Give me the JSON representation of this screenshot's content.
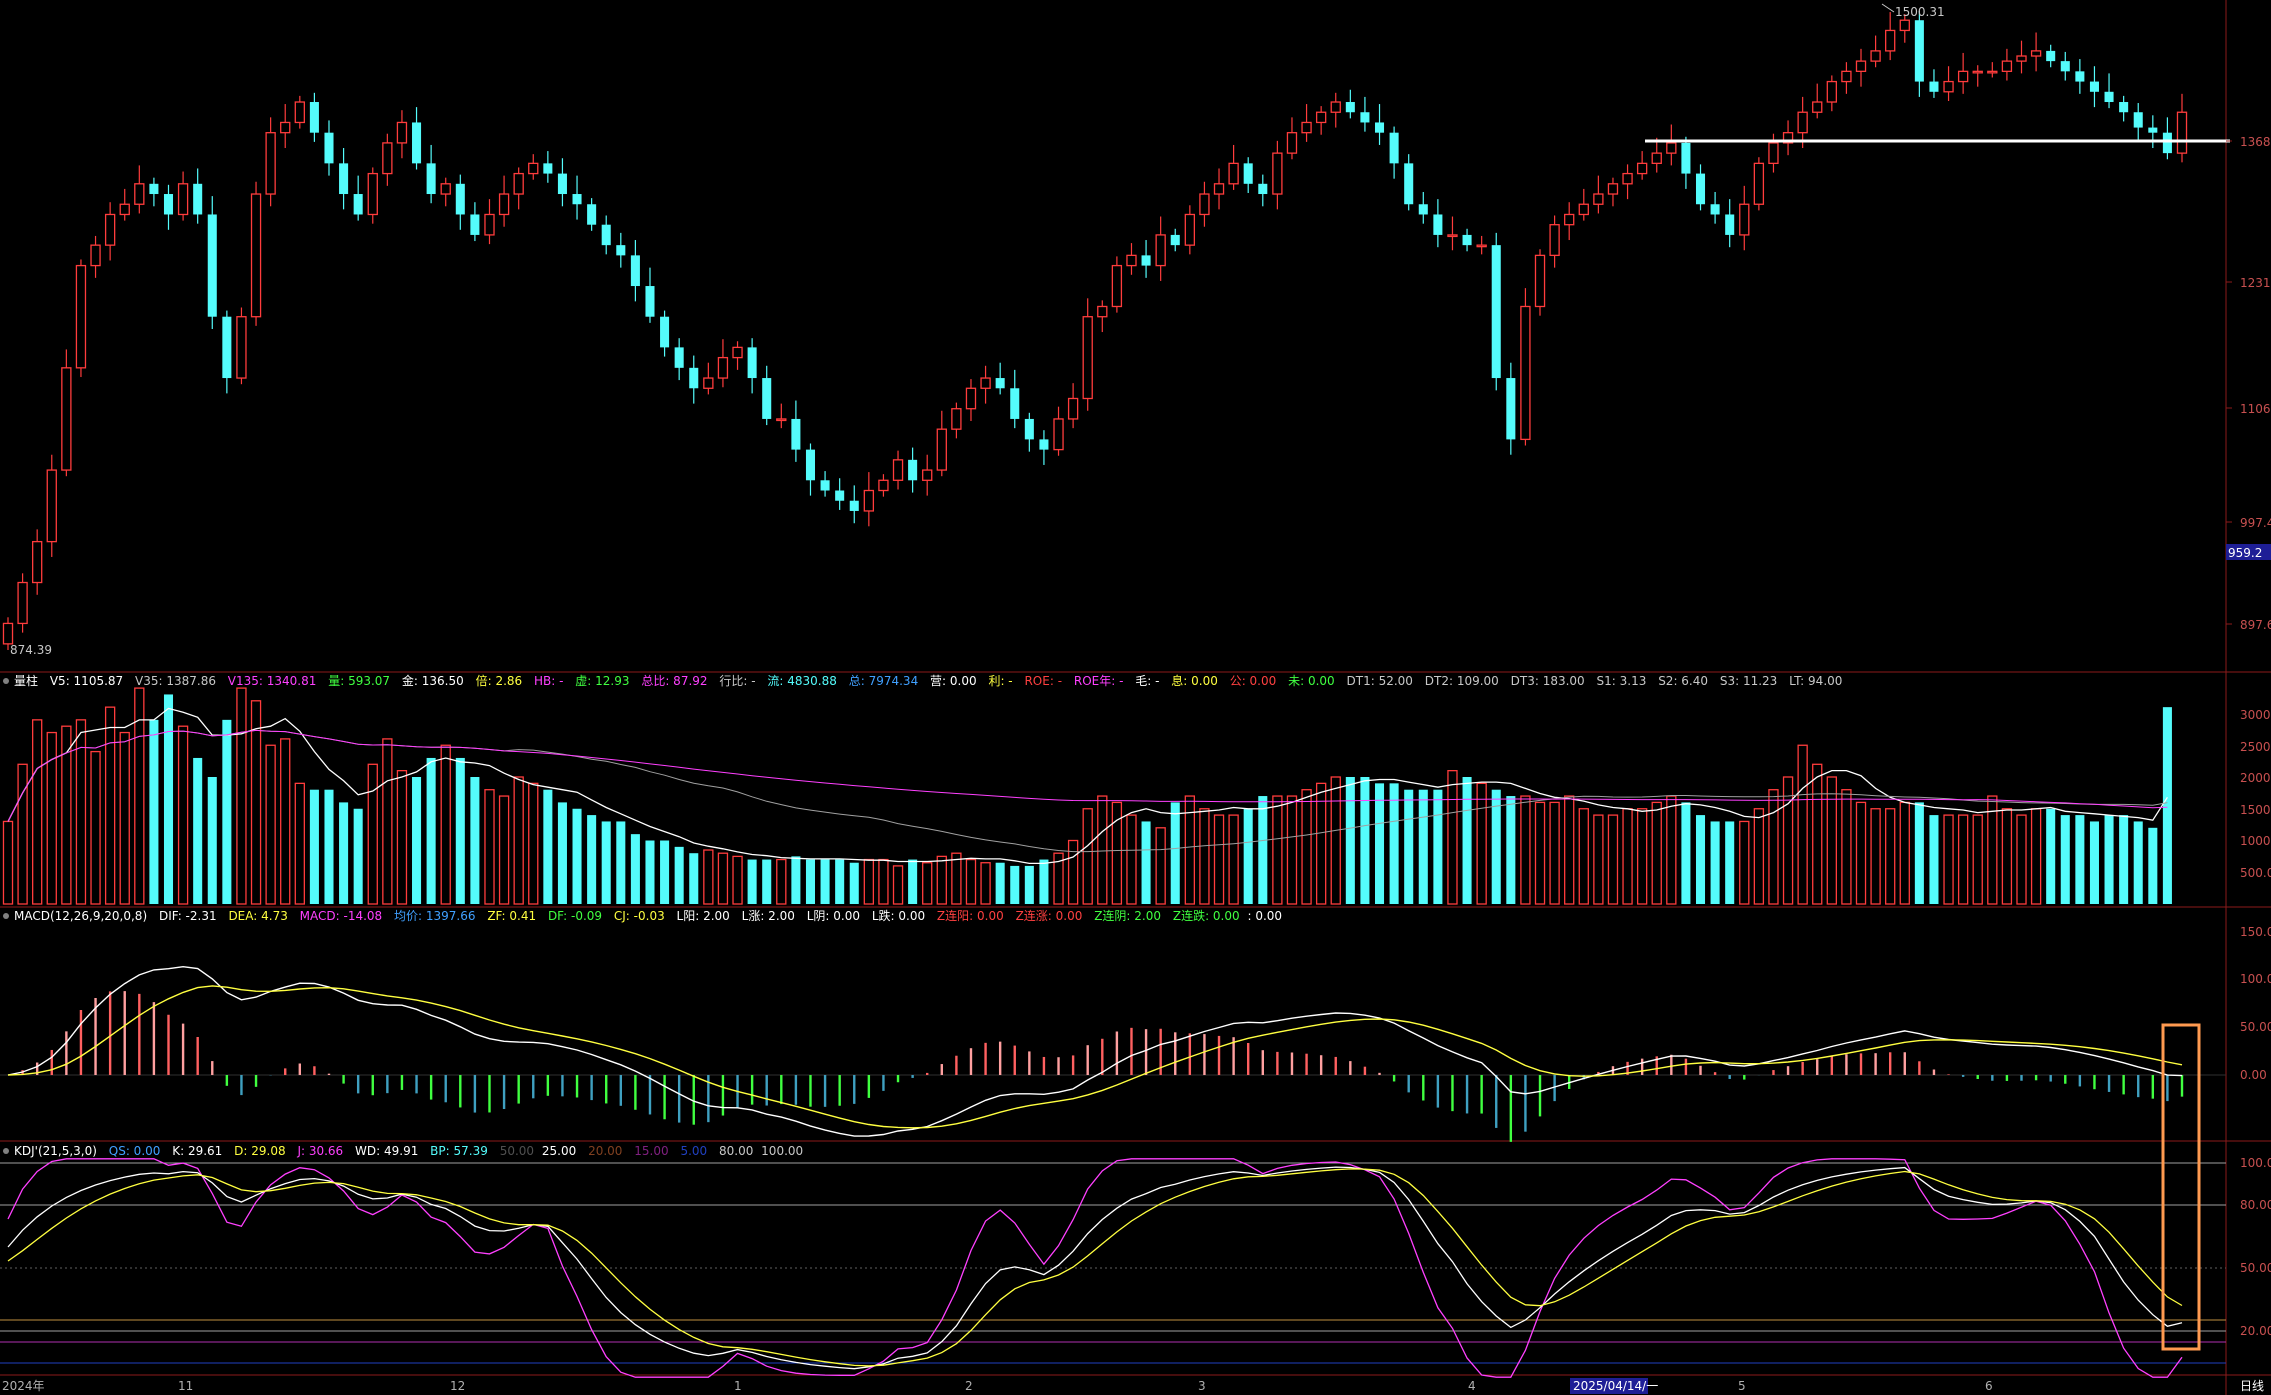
{
  "chart_data": {
    "type": "candlestick",
    "main": {
      "high_label": "1500.31",
      "low_label": "874.39",
      "current_price_tag": "959.2",
      "y_ticks": [
        "1368",
        "1231",
        "1106",
        "997.4",
        "897.6"
      ],
      "x_month_labels": [
        "2024年",
        "11",
        "12",
        "1",
        "2",
        "3",
        "4",
        "5",
        "6"
      ],
      "cursor_date": "2025/04/14/一",
      "period_label": "日线",
      "open": [
        880,
        900,
        940,
        980,
        1050,
        1150,
        1250,
        1270,
        1300,
        1310,
        1330,
        1320,
        1300,
        1330,
        1300,
        1200,
        1140,
        1200,
        1320,
        1380,
        1390,
        1410,
        1380,
        1350,
        1320,
        1300,
        1340,
        1370,
        1390,
        1350,
        1320,
        1330,
        1300,
        1280,
        1300,
        1320,
        1340,
        1350,
        1340,
        1320,
        1310,
        1290,
        1270,
        1260,
        1230,
        1200,
        1170,
        1150,
        1130,
        1140,
        1160,
        1170,
        1140,
        1100,
        1100,
        1070,
        1040,
        1030,
        1020,
        1010,
        1030,
        1040,
        1060,
        1040,
        1050,
        1090,
        1110,
        1130,
        1140,
        1130,
        1100,
        1080,
        1070,
        1100,
        1120,
        1200,
        1210,
        1250,
        1260,
        1250,
        1280,
        1270,
        1300,
        1320,
        1330,
        1350,
        1330,
        1320,
        1360,
        1380,
        1390,
        1400,
        1410,
        1400,
        1390,
        1380,
        1350,
        1310,
        1300,
        1280,
        1280,
        1270,
        1270,
        1140,
        1080,
        1210,
        1260,
        1290,
        1300,
        1310,
        1320,
        1330,
        1340,
        1350,
        1360,
        1370,
        1340,
        1310,
        1300,
        1280,
        1310,
        1350,
        1370,
        1380,
        1400,
        1410,
        1430,
        1440,
        1450,
        1460,
        1480,
        1490,
        1430,
        1420,
        1430,
        1440,
        1440,
        1440,
        1450,
        1455,
        1460,
        1450,
        1440,
        1430,
        1420,
        1410,
        1400,
        1385,
        1380,
        1360
      ],
      "close": [
        900,
        940,
        980,
        1050,
        1150,
        1250,
        1270,
        1300,
        1310,
        1330,
        1320,
        1300,
        1330,
        1300,
        1200,
        1140,
        1200,
        1320,
        1380,
        1390,
        1410,
        1380,
        1350,
        1320,
        1300,
        1340,
        1370,
        1390,
        1350,
        1320,
        1330,
        1300,
        1280,
        1300,
        1320,
        1340,
        1350,
        1340,
        1320,
        1310,
        1290,
        1270,
        1260,
        1230,
        1200,
        1170,
        1150,
        1130,
        1140,
        1160,
        1170,
        1140,
        1100,
        1100,
        1070,
        1040,
        1030,
        1020,
        1010,
        1030,
        1040,
        1060,
        1040,
        1050,
        1090,
        1110,
        1130,
        1140,
        1130,
        1100,
        1080,
        1070,
        1100,
        1120,
        1200,
        1210,
        1250,
        1260,
        1250,
        1280,
        1270,
        1300,
        1320,
        1330,
        1350,
        1330,
        1320,
        1360,
        1380,
        1390,
        1400,
        1410,
        1400,
        1390,
        1380,
        1350,
        1310,
        1300,
        1280,
        1280,
        1270,
        1270,
        1140,
        1080,
        1210,
        1260,
        1290,
        1300,
        1310,
        1320,
        1330,
        1340,
        1350,
        1360,
        1370,
        1340,
        1310,
        1300,
        1280,
        1310,
        1350,
        1370,
        1380,
        1400,
        1410,
        1430,
        1440,
        1450,
        1460,
        1480,
        1490,
        1430,
        1420,
        1430,
        1440,
        1440,
        1440,
        1450,
        1455,
        1460,
        1450,
        1440,
        1430,
        1420,
        1410,
        1400,
        1385,
        1380,
        1360,
        1400
      ]
    },
    "volume": {
      "header": {
        "title": "量柱",
        "v5": "V5: 1105.87",
        "v35": "V35: 1387.86",
        "v135": "V135: 1340.81",
        "liang": "量: 593.07",
        "jin": "金: 136.50",
        "bei": "倍: 2.86",
        "hb": "HB: -",
        "xu": "虚: 12.93",
        "zongbi": "总比: 87.92",
        "hangbi": "行比: -",
        "liu": "流: 4830.88",
        "zong": "总: 7974.34",
        "ying": "营: 0.00",
        "li": "利: -",
        "roe": "ROE: -",
        "roenian": "ROE年: -",
        "mao": "毛: -",
        "xi": "息: 0.00",
        "gong": "公: 0.00",
        "wei": "未: 0.00",
        "dt1": "DT1: 52.00",
        "dt2": "DT2: 109.00",
        "dt3": "DT3: 183.00",
        "s1": "S1: 3.13",
        "s2": "S2: 6.40",
        "s3": "S3: 11.23",
        "lt": "LT: 94.00"
      },
      "y_ticks": [
        "3000",
        "2500",
        "2000",
        "1500",
        "1000",
        "500.00"
      ],
      "values": [
        1300,
        2200,
        2900,
        2700,
        2800,
        2900,
        2400,
        3100,
        2700,
        3400,
        2900,
        3300,
        2800,
        2300,
        2000,
        2900,
        3400,
        3200,
        2500,
        2600,
        1900,
        1800,
        1800,
        1600,
        1500,
        2200,
        2600,
        2100,
        2000,
        2300,
        2500,
        2300,
        2000,
        1800,
        1700,
        2000,
        1900,
        1800,
        1600,
        1500,
        1400,
        1300,
        1300,
        1100,
        1000,
        1000,
        900,
        800,
        850,
        800,
        750,
        700,
        700,
        700,
        750,
        700,
        700,
        700,
        650,
        700,
        700,
        600,
        700,
        650,
        750,
        800,
        700,
        650,
        650,
        600,
        600,
        700,
        800,
        1000,
        1500,
        1700,
        1600,
        1400,
        1300,
        1200,
        1600,
        1700,
        1500,
        1400,
        1400,
        1500,
        1700,
        1700,
        1700,
        1800,
        1900,
        2000,
        2000,
        2000,
        1900,
        1900,
        1800,
        1800,
        1800,
        2100,
        2000,
        1900,
        1800,
        1700,
        1700,
        1600,
        1600,
        1700,
        1500,
        1400,
        1400,
        1500,
        1500,
        1600,
        1700,
        1600,
        1400,
        1300,
        1300,
        1300,
        1500,
        1800,
        2000,
        2500,
        2200,
        2000,
        1800,
        1600,
        1500,
        1500,
        1600,
        1600,
        1400,
        1400,
        1400,
        1400,
        1700,
        1500,
        1400,
        1500,
        1500,
        1400,
        1400,
        1300,
        1400,
        1400,
        1300,
        1200,
        3100
      ]
    },
    "macd": {
      "header": {
        "title": "MACD(12,26,9,20,0,8)",
        "dif": "DIF: -2.31",
        "dea": "DEA: 4.73",
        "macd": "MACD: -14.08",
        "junjia": "均价: 1397.66",
        "zf": "ZF: 0.41",
        "df": "DF: -0.09",
        "cj": "CJ: -0.03",
        "lyang": "L阳: 2.00",
        "lzhang": "L涨: 2.00",
        "lyin": "L阴: 0.00",
        "ldie": "L跌: 0.00",
        "zlianyang": "Z连阳: 0.00",
        "zlianzhang": "Z连涨: 0.00",
        "zlianyin": "Z连阴: 2.00",
        "zliandie": "Z连跌: 0.00",
        "tail": ": 0.00"
      },
      "y_ticks": [
        "150.00",
        "100.00",
        "50.00",
        "0.00"
      ]
    },
    "kdj": {
      "header": {
        "title": "KDJ'(21,5,3,0)",
        "qs": "QS: 0.00",
        "k": "K: 29.61",
        "d": "D: 29.08",
        "j": "J: 30.66",
        "wd": "WD: 49.91",
        "bp": "BP: 57.39",
        "l50": "50.00",
        "l25": "25.00",
        "l20": "20.00",
        "l15": "15.00",
        "l5": "5.00",
        "l80": "80.00",
        "l100": "100.00"
      },
      "y_ticks": [
        "100.00",
        "80.00",
        "50.00",
        "20.00"
      ]
    },
    "colors": {
      "up": "#ff3c3c",
      "down": "#54fcfc",
      "grid": "#8c1a1a",
      "bg": "#000000"
    }
  }
}
